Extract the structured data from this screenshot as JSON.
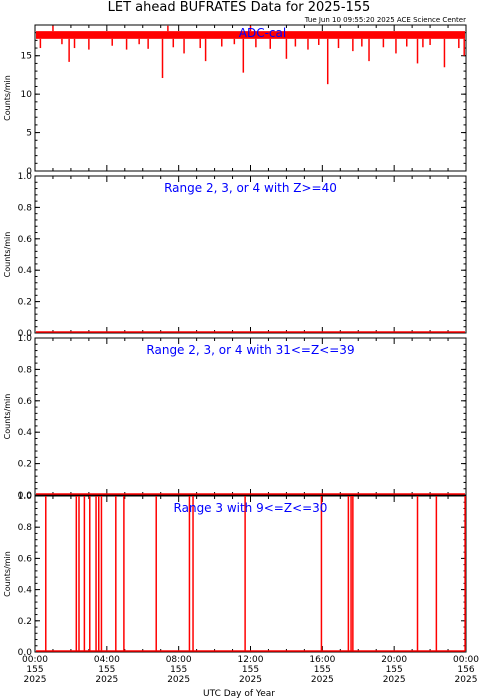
{
  "title": "LET ahead BUFRATES Data for 2025-155",
  "timestamp": "Tue Jun 10 09:55:20 2025 ACE Science Center",
  "xlabel": "UTC Day of Year",
  "colors": {
    "data": "#ff0000",
    "panel_title": "#0000ff",
    "axes": "#000000"
  },
  "chart_data": [
    {
      "type": "line",
      "panel_title": "ADC-cal",
      "ylabel": "Counts/min",
      "ylim": [
        0,
        19
      ],
      "yticks": [
        0,
        5,
        10,
        15
      ],
      "ytick_labels": [
        "0",
        "5",
        "10",
        "15"
      ],
      "baseline": 17.2,
      "band": [
        17.2,
        18.2
      ],
      "dips": [
        [
          0.3,
          16.0
        ],
        [
          1.5,
          16.5
        ],
        [
          1.9,
          14.2
        ],
        [
          2.2,
          16.0
        ],
        [
          3.0,
          15.8
        ],
        [
          4.3,
          16.3
        ],
        [
          5.1,
          15.8
        ],
        [
          5.8,
          16.5
        ],
        [
          6.3,
          15.9
        ],
        [
          7.1,
          12.1
        ],
        [
          7.7,
          16.1
        ],
        [
          8.3,
          15.3
        ],
        [
          9.2,
          16.0
        ],
        [
          9.5,
          14.3
        ],
        [
          10.4,
          16.2
        ],
        [
          11.1,
          16.5
        ],
        [
          11.6,
          12.8
        ],
        [
          12.3,
          16.1
        ],
        [
          13.1,
          15.9
        ],
        [
          14.0,
          14.6
        ],
        [
          14.5,
          16.2
        ],
        [
          15.2,
          15.8
        ],
        [
          15.8,
          16.4
        ],
        [
          16.3,
          11.3
        ],
        [
          16.9,
          16.0
        ],
        [
          17.7,
          15.6
        ],
        [
          18.2,
          16.2
        ],
        [
          18.6,
          14.3
        ],
        [
          19.4,
          16.1
        ],
        [
          20.1,
          15.3
        ],
        [
          20.7,
          16.2
        ],
        [
          21.3,
          14.0
        ],
        [
          21.6,
          16.1
        ],
        [
          22.0,
          16.4
        ],
        [
          22.8,
          13.5
        ],
        [
          23.6,
          16.0
        ],
        [
          23.9,
          15.0
        ]
      ],
      "spikes": [
        [
          1.0,
          18.9
        ],
        [
          7.4,
          18.9
        ],
        [
          12.0,
          18.9
        ]
      ]
    },
    {
      "type": "line",
      "panel_title": "Range 2, 3, or 4 with Z>=40",
      "ylabel": "Counts/min",
      "ylim": [
        0,
        1
      ],
      "yticks": [
        0,
        0.2,
        0.4,
        0.6,
        0.8,
        1.0
      ],
      "ytick_labels": [
        "0.0",
        "0.2",
        "0.4",
        "0.6",
        "0.8",
        "1.0"
      ],
      "baseline": 0,
      "events": []
    },
    {
      "type": "line",
      "panel_title": "Range 2, 3, or 4 with 31<=Z<=39",
      "ylabel": "Counts/min",
      "ylim": [
        0,
        1
      ],
      "yticks": [
        0,
        0.2,
        0.4,
        0.6,
        0.8,
        1.0
      ],
      "ytick_labels": [
        "0.0",
        "0.2",
        "0.4",
        "0.6",
        "0.8",
        "1.0"
      ],
      "baseline": 0,
      "events": []
    },
    {
      "type": "line",
      "panel_title": "Range 3 with 9<=Z<=30",
      "ylabel": "Counts/min",
      "ylim": [
        0,
        1
      ],
      "yticks": [
        0,
        0.2,
        0.4,
        0.6,
        0.8,
        1.0
      ],
      "ytick_labels": [
        "0.0",
        "0.2",
        "0.4",
        "0.6",
        "0.8",
        "1.0"
      ],
      "baseline": 0,
      "events": [
        0.6,
        2.3,
        2.45,
        2.75,
        3.05,
        3.4,
        3.55,
        3.7,
        4.5,
        4.95,
        6.75,
        8.6,
        8.8,
        11.7,
        15.95,
        17.45,
        17.6,
        17.7,
        21.3,
        22.35,
        23.95
      ]
    }
  ],
  "xaxis": {
    "range_hours": [
      0,
      24
    ],
    "major_ticks": [
      {
        "hour": 0,
        "time": "00:00",
        "doy": "155",
        "year": "2025"
      },
      {
        "hour": 4,
        "time": "04:00",
        "doy": "155",
        "year": "2025"
      },
      {
        "hour": 8,
        "time": "08:00",
        "doy": "155",
        "year": "2025"
      },
      {
        "hour": 12,
        "time": "12:00",
        "doy": "155",
        "year": "2025"
      },
      {
        "hour": 16,
        "time": "16:00",
        "doy": "155",
        "year": "2025"
      },
      {
        "hour": 20,
        "time": "20:00",
        "doy": "155",
        "year": "2025"
      },
      {
        "hour": 24,
        "time": "00:00",
        "doy": "156",
        "year": "2025"
      }
    ]
  }
}
